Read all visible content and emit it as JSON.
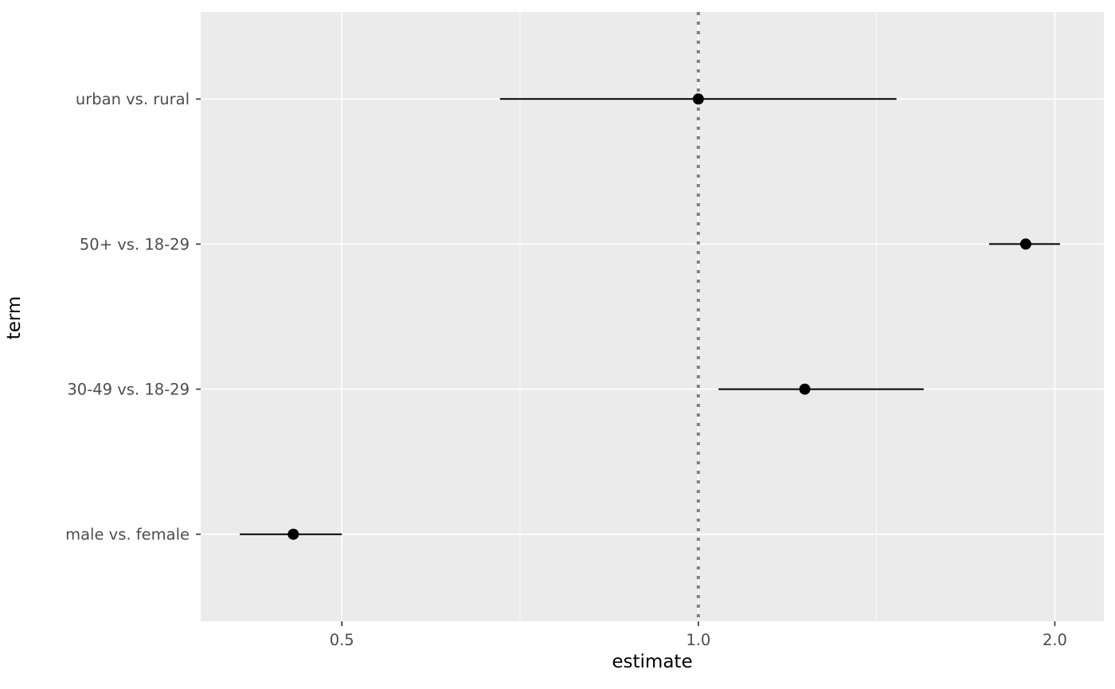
{
  "chart_data": {
    "type": "scatter",
    "subtype": "forest-pointrange",
    "orientation": "horizontal",
    "title": "",
    "xlabel": "estimate",
    "ylabel": "term",
    "x_scale": "log2",
    "x_ticks": [
      0.5,
      1.0,
      2.0
    ],
    "x_tick_labels": [
      "0.5",
      "1.0",
      "2.0"
    ],
    "x_minor_ticks": [
      0.707,
      1.414
    ],
    "x_domain": [
      0.38,
      2.2
    ],
    "reference_line": {
      "x": 1.0,
      "style": "dotted",
      "color": "#808080"
    },
    "categories_top_to_bottom": [
      "urban vs. rural",
      "50+ vs. 18-29",
      "30-49 vs. 18-29",
      "male vs. female"
    ],
    "points": [
      {
        "term": "urban vs. rural",
        "estimate": 1.0,
        "conf_low": 0.68,
        "conf_high": 1.47
      },
      {
        "term": "50+ vs. 18-29",
        "estimate": 1.89,
        "conf_low": 1.76,
        "conf_high": 2.02
      },
      {
        "term": "30-49 vs. 18-29",
        "estimate": 1.23,
        "conf_low": 1.04,
        "conf_high": 1.55
      },
      {
        "term": "male vs. female",
        "estimate": 0.455,
        "conf_low": 0.41,
        "conf_high": 0.5
      }
    ],
    "legend": "none",
    "grid": "on",
    "panel_background": "#EBEBEB",
    "grid_color": "#FFFFFF",
    "tick_label_color": "#4D4D4D",
    "tick_mark_color": "#333333",
    "point_color": "#000000",
    "errorbar_color": "#000000"
  }
}
